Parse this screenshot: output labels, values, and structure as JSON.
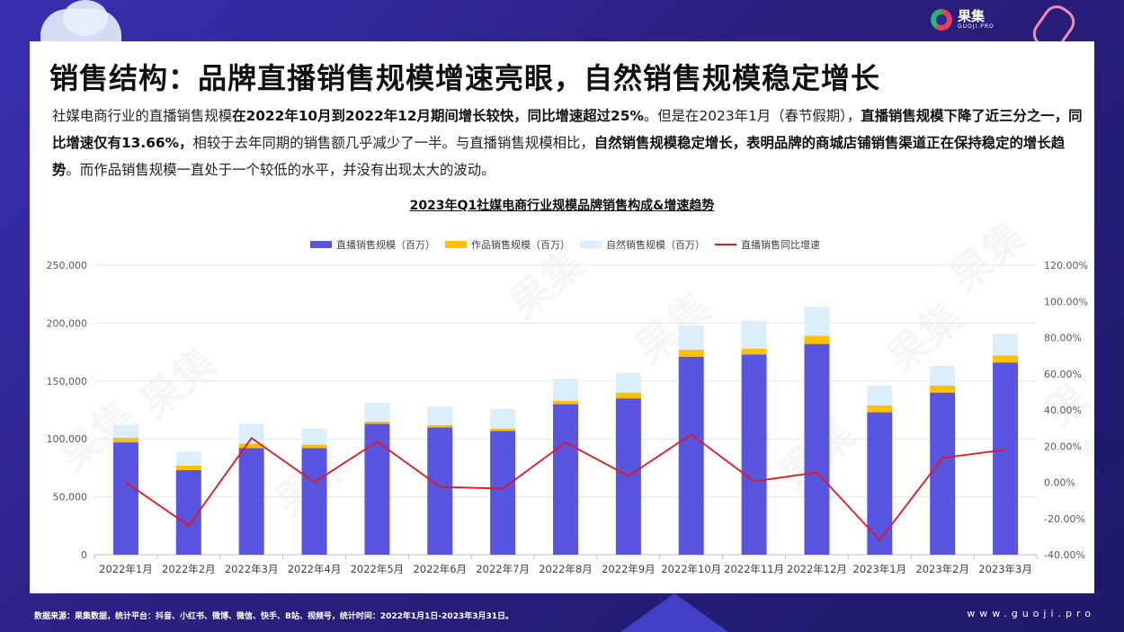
{
  "title": "销售结构：品牌直播销售规模增速亮眼，自然销售规模稳定增长",
  "paragraph": [
    {
      "t": "社媒电商行业的直播销售规模",
      "b": false
    },
    {
      "t": "在2022年10月到2022年12月期间增长较快，同比增速超过25%",
      "b": true
    },
    {
      "t": "。但是在2023年1月（春节假期），",
      "b": false
    },
    {
      "t": "直播销售规模下降了近三分之一，同比增速仅有13.66%，",
      "b": true
    },
    {
      "t": "相较于去年同期的销售额几乎减少了一半。与直播销售规模相比，",
      "b": false
    },
    {
      "t": "自然销售规模稳定增长，表明品牌的商城店铺销售渠道正在保持稳定的增长趋势",
      "b": true
    },
    {
      "t": "。而作品销售规模一直处于一个较低的水平，并没有出现太大的波动。",
      "b": false
    }
  ],
  "logo": {
    "name": "果集",
    "sub": "GUOJI.PRO"
  },
  "footer": "数据来源：果集数据，统计平台：抖音、小红书、微博、微信、快手、B站、视频号，统计时间：2022年1月1日-2023年3月31日。",
  "site": "www.guoji.pro",
  "watermark": "果集",
  "chart_data": {
    "type": "bar",
    "title": "2023年Q1社媒电商行业规模品牌销售构成&增速趋势",
    "categories": [
      "2022年1月",
      "2022年2月",
      "2022年3月",
      "2022年4月",
      "2022年5月",
      "2022年6月",
      "2022年7月",
      "2022年8月",
      "2022年9月",
      "2022年10月",
      "2022年11月",
      "2022年12月",
      "2023年1月",
      "2023年2月",
      "2023年3月"
    ],
    "series": [
      {
        "name": "直播销售规模（百万）",
        "type": "bar",
        "color": "#5856e0",
        "values": [
          97000,
          73000,
          92000,
          92000,
          113000,
          110000,
          107000,
          130000,
          135000,
          171000,
          173000,
          182000,
          123000,
          140000,
          166000
        ]
      },
      {
        "name": "作品销售规模（百万）",
        "type": "bar",
        "color": "#ffc000",
        "values": [
          4000,
          4000,
          4000,
          3000,
          2000,
          2000,
          2000,
          3000,
          5000,
          6000,
          5000,
          7000,
          6000,
          6000,
          6000
        ]
      },
      {
        "name": "自然销售规模（百万）",
        "type": "bar",
        "color": "#dbeefb",
        "values": [
          11000,
          12000,
          17000,
          14000,
          16000,
          16000,
          17000,
          19000,
          17000,
          21000,
          24000,
          25000,
          17000,
          17000,
          19000
        ]
      },
      {
        "name": "直播销售同比增速",
        "type": "line",
        "color": "#e8141e",
        "axis": "right",
        "values": [
          0.0,
          -24.0,
          24.5,
          0.0,
          22.5,
          -2.5,
          -3.5,
          22.0,
          3.5,
          26.5,
          0.5,
          5.5,
          -32.0,
          13.5,
          18.0
        ]
      }
    ],
    "ylim": [
      0,
      250000
    ],
    "yticks": [
      "0",
      "50,000",
      "100,000",
      "150,000",
      "200,000",
      "250,000"
    ],
    "y2lim": [
      -40,
      120
    ],
    "y2ticks": [
      "-40.00%",
      "-20.00%",
      "0.00%",
      "20.00%",
      "40.00%",
      "60.00%",
      "80.00%",
      "100.00%",
      "120.00%"
    ],
    "legend_position": "top-center",
    "grid": true
  }
}
